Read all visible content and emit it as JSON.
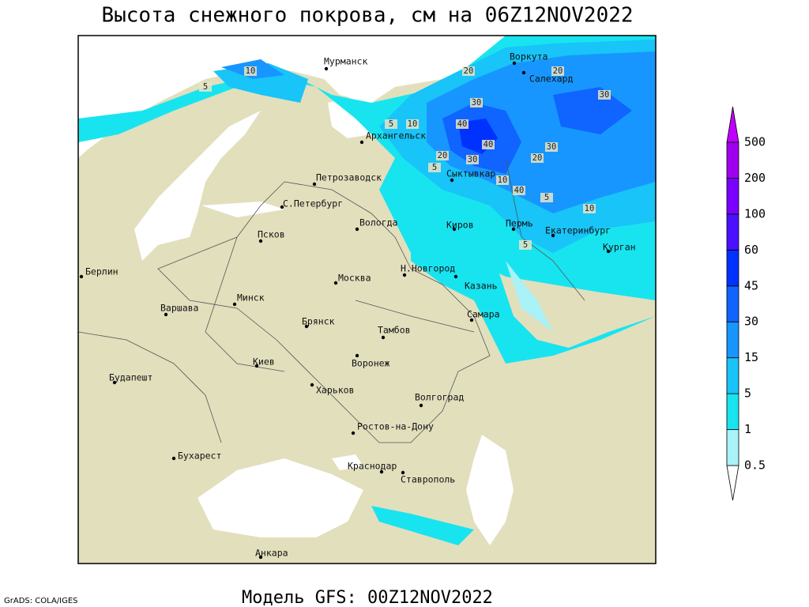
{
  "header": {
    "title": "Высота снежного покрова, см на 06Z12NOV2022"
  },
  "footer": {
    "model": "Модель GFS: 00Z12NOV2022",
    "credit": "GrADS: COLA/IGES"
  },
  "map": {
    "cities": [
      "Мурманск",
      "Воркута",
      "Салехард",
      "Архангельск",
      "Сыктывкар",
      "Петрозаводск",
      "С.Петербург",
      "Вологда",
      "Киров",
      "Пермь",
      "Екатеринбург",
      "Курган",
      "Псков",
      "Берлин",
      "Н.Новгород",
      "Москва",
      "Казань",
      "Минск",
      "Варшава",
      "Самара",
      "Брянск",
      "Тамбов",
      "Киев",
      "Воронеж",
      "Будапешт",
      "Харьков",
      "Волгоград",
      "Ростов-на-Дону",
      "Бухарест",
      "Краснодар",
      "Ставрополь",
      "Анкара"
    ],
    "contour_labels": [
      10,
      5,
      20,
      20,
      30,
      40,
      40,
      30,
      30,
      20,
      20,
      30,
      10,
      40,
      5,
      10,
      5,
      5,
      10,
      5
    ]
  },
  "colorbar": {
    "levels": [
      0.5,
      1,
      5,
      15,
      30,
      45,
      60,
      100,
      200,
      500
    ],
    "colors": [
      "#ffffff",
      "#a8f2f8",
      "#18e4f0",
      "#18c4f8",
      "#1896ff",
      "#1064ff",
      "#0032ff",
      "#4a10ff",
      "#7a00ff",
      "#a000f0",
      "#c000ff"
    ]
  }
}
